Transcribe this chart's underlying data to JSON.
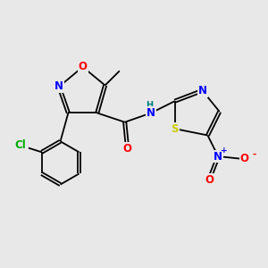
{
  "bg_color": "#e8e8e8",
  "bond_color": "#000000",
  "atom_colors": {
    "O": "#ff0000",
    "N": "#0000ff",
    "S": "#cccc00",
    "Cl": "#00aa00",
    "C": "#000000",
    "H": "#008080"
  },
  "font_size": 8.5,
  "bond_lw": 1.3
}
